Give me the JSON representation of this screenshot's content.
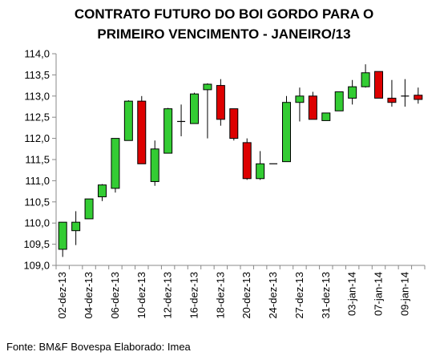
{
  "chart_data": {
    "type": "candlestick",
    "title_lines": [
      "CONTRATO FUTURO DO BOI GORDO PARA O",
      "PRIMEIRO VENCIMENTO - JANEIRO/13"
    ],
    "ylim": [
      109.0,
      114.0
    ],
    "y_ticks": [
      "109,0",
      "109,5",
      "110,0",
      "110,5",
      "111,0",
      "111,5",
      "112,0",
      "112,5",
      "113,0",
      "113,5",
      "114,0"
    ],
    "x_labels": [
      "02-dez-13",
      "04-dez-13",
      "06-dez-13",
      "10-dez-13",
      "12-dez-13",
      "16-dez-13",
      "18-dez-13",
      "20-dez-13",
      "24-dez-13",
      "27-dez-13",
      "31-dez-13",
      "03-jan-14",
      "07-jan-14",
      "09-jan-14"
    ],
    "colors": {
      "up": "#33cc33",
      "down": "#dd0000",
      "doji": "#000000"
    },
    "candles": [
      {
        "open": 109.38,
        "high": 110.02,
        "low": 109.2,
        "close": 110.02
      },
      {
        "open": 109.82,
        "high": 110.28,
        "low": 109.48,
        "close": 110.02
      },
      {
        "open": 110.1,
        "high": 110.57,
        "low": 110.1,
        "close": 110.57
      },
      {
        "open": 110.62,
        "high": 110.92,
        "low": 110.52,
        "close": 110.9
      },
      {
        "open": 110.82,
        "high": 112.0,
        "low": 110.72,
        "close": 112.0
      },
      {
        "open": 111.95,
        "high": 112.9,
        "low": 111.95,
        "close": 112.88
      },
      {
        "open": 112.88,
        "high": 113.0,
        "low": 111.4,
        "close": 111.4
      },
      {
        "open": 110.98,
        "high": 111.95,
        "low": 110.88,
        "close": 111.75
      },
      {
        "open": 111.65,
        "high": 112.72,
        "low": 111.65,
        "close": 112.7
      },
      {
        "open": 112.4,
        "high": 112.8,
        "low": 112.05,
        "close": 112.4
      },
      {
        "open": 112.35,
        "high": 113.08,
        "low": 112.35,
        "close": 113.05
      },
      {
        "open": 113.15,
        "high": 113.3,
        "low": 112.0,
        "close": 113.28
      },
      {
        "open": 113.25,
        "high": 113.4,
        "low": 112.3,
        "close": 112.45
      },
      {
        "open": 112.7,
        "high": 112.7,
        "low": 111.95,
        "close": 112.0
      },
      {
        "open": 111.9,
        "high": 112.0,
        "low": 111.02,
        "close": 111.05
      },
      {
        "open": 111.05,
        "high": 111.7,
        "low": 111.02,
        "close": 111.4
      },
      {
        "open": 111.4,
        "high": 111.4,
        "low": 111.4,
        "close": 111.4
      },
      {
        "open": 111.45,
        "high": 113.0,
        "low": 111.45,
        "close": 112.85
      },
      {
        "open": 112.85,
        "high": 113.2,
        "low": 112.4,
        "close": 113.0
      },
      {
        "open": 113.0,
        "high": 113.1,
        "low": 112.45,
        "close": 112.45
      },
      {
        "open": 112.42,
        "high": 112.6,
        "low": 112.42,
        "close": 112.6
      },
      {
        "open": 112.65,
        "high": 113.1,
        "low": 112.65,
        "close": 113.1
      },
      {
        "open": 112.95,
        "high": 113.38,
        "low": 112.8,
        "close": 113.22
      },
      {
        "open": 113.22,
        "high": 113.75,
        "low": 113.2,
        "close": 113.55
      },
      {
        "open": 113.58,
        "high": 113.58,
        "low": 112.95,
        "close": 112.95
      },
      {
        "open": 112.95,
        "high": 113.38,
        "low": 112.75,
        "close": 112.85
      },
      {
        "open": 113.0,
        "high": 113.4,
        "low": 112.75,
        "close": 113.0
      },
      {
        "open": 113.02,
        "high": 113.2,
        "low": 112.82,
        "close": 112.92
      }
    ]
  },
  "source_text": "Fonte: BM&F Bovespa Elaborado: Imea"
}
